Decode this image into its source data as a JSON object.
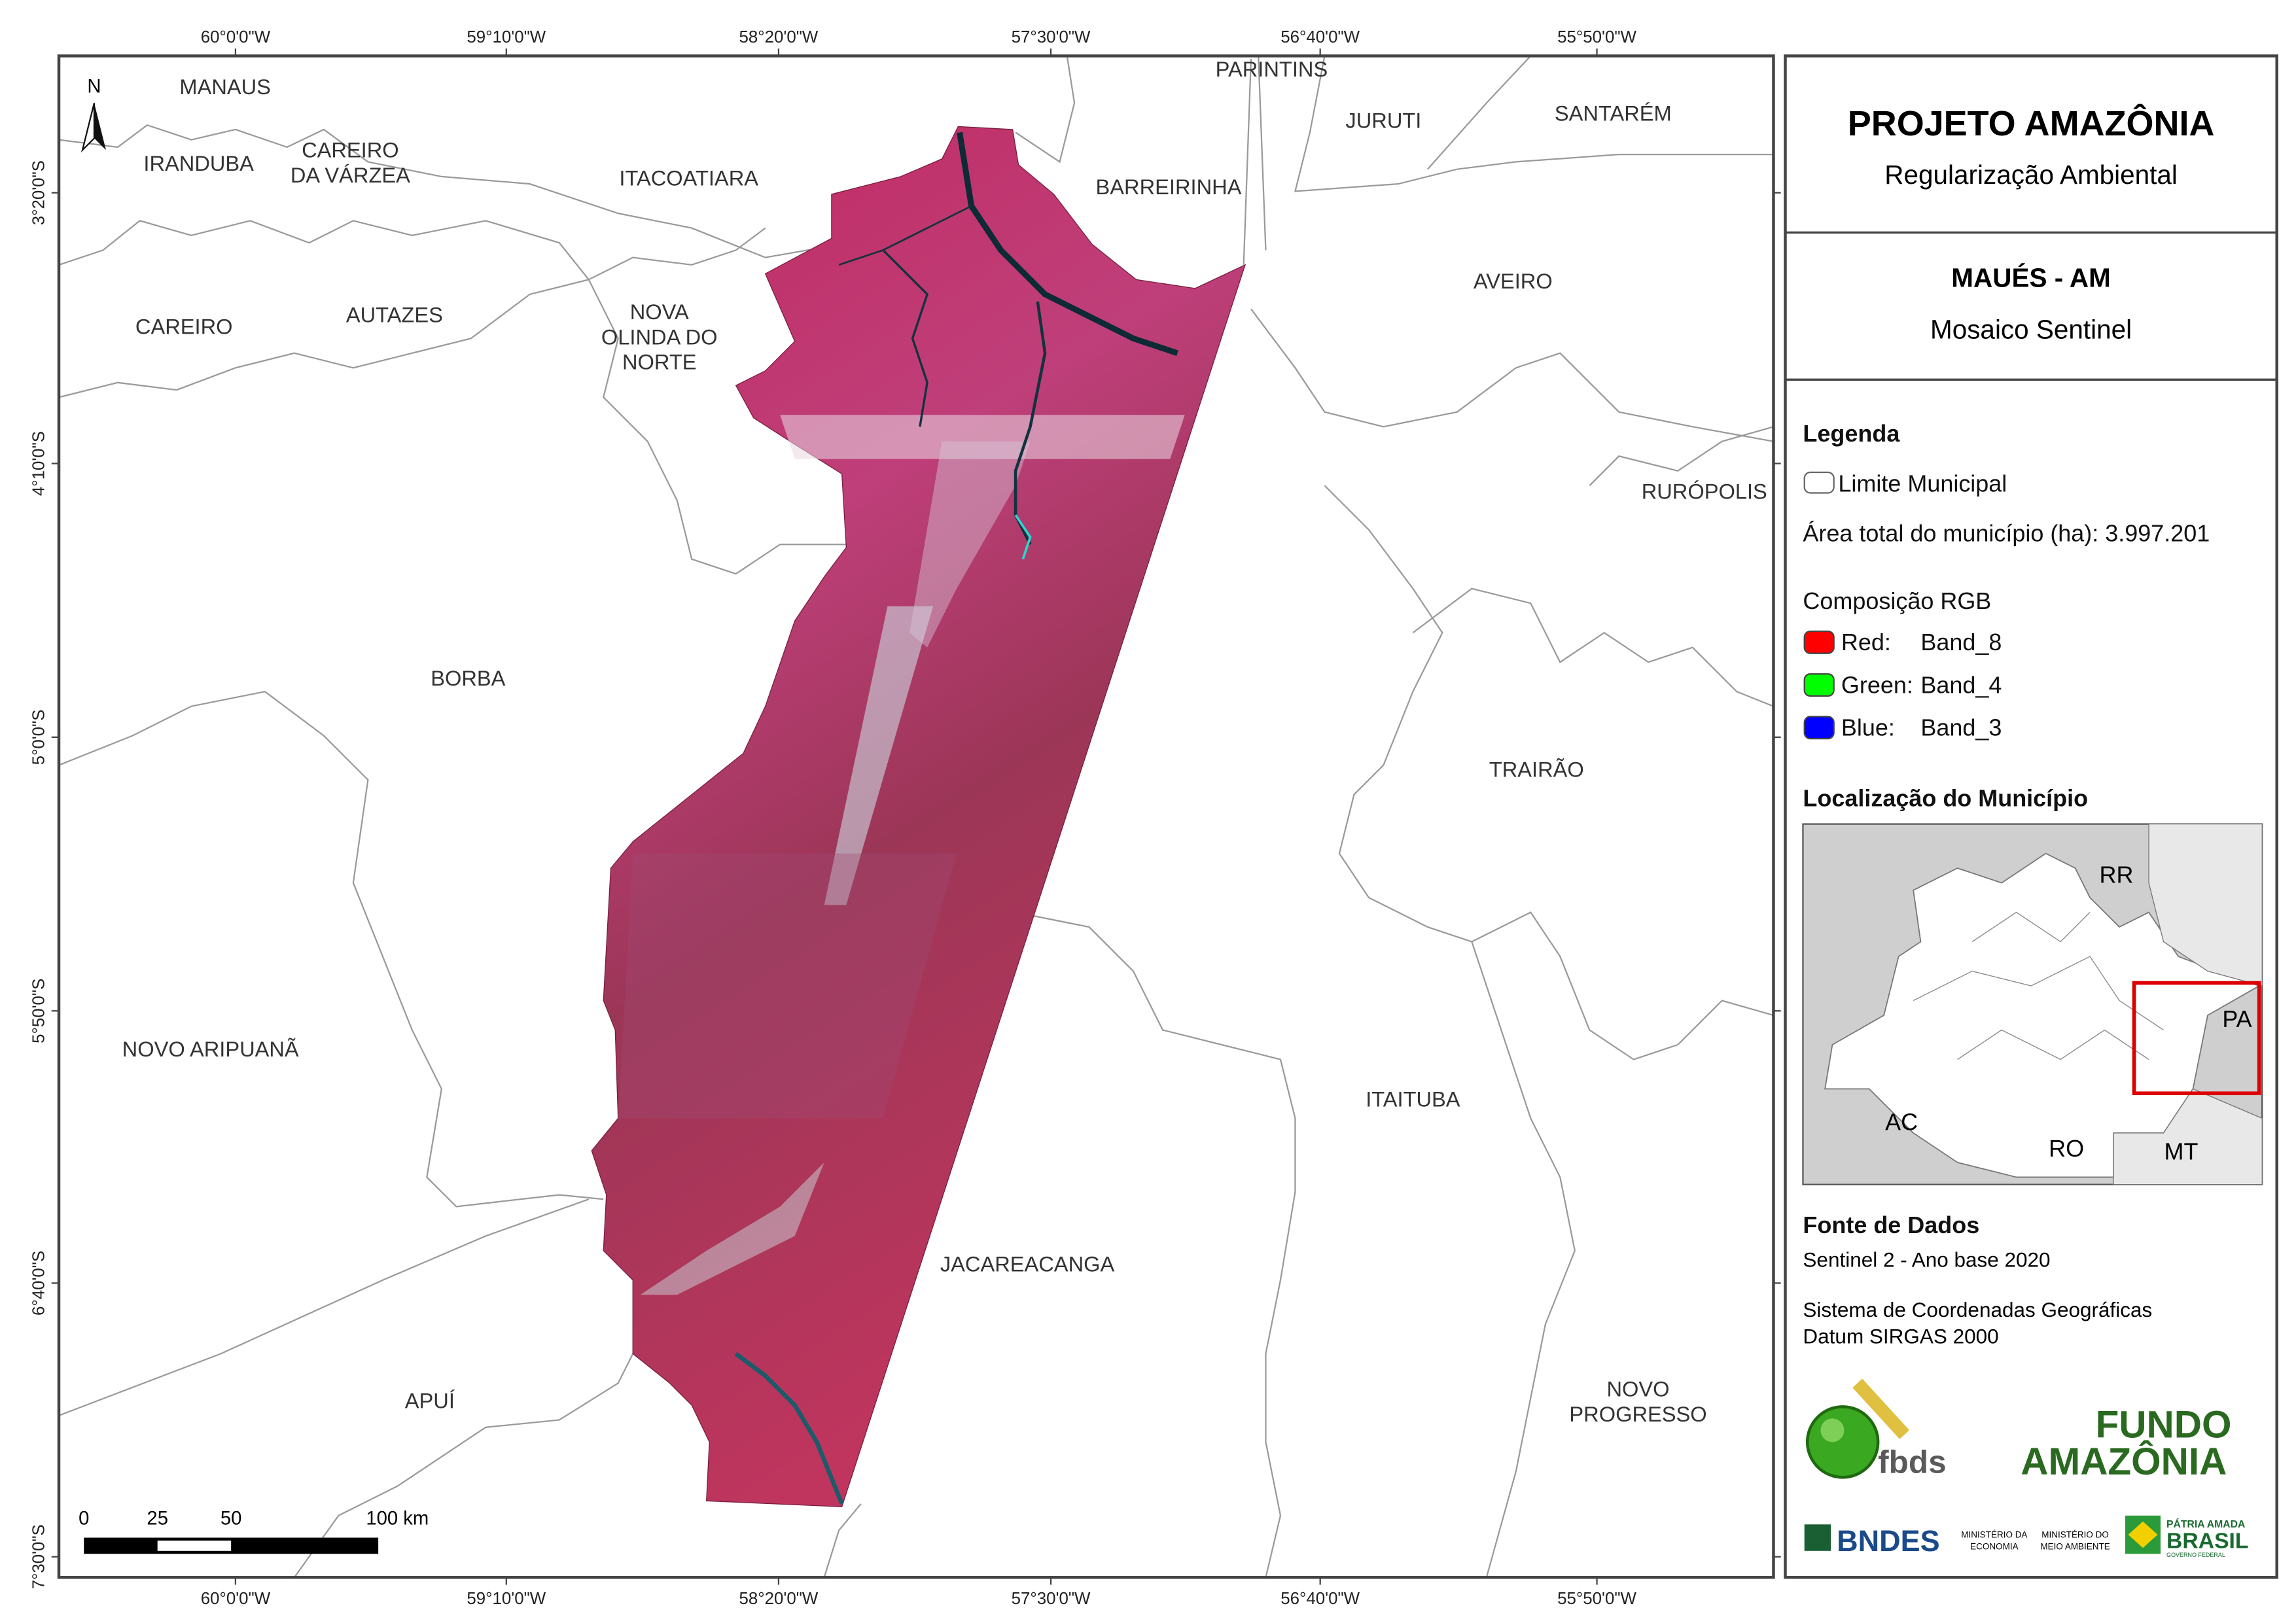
{
  "map": {
    "lon_ticks": [
      "60°0'0\"W",
      "59°10'0\"W",
      "58°20'0\"W",
      "57°30'0\"W",
      "56°40'0\"W",
      "55°50'0\"W"
    ],
    "lat_ticks": [
      "3°20'0\"S",
      "4°10'0\"S",
      "5°0'0\"S",
      "5°50'0\"S",
      "6°40'0\"S",
      "7°30'0\"S"
    ],
    "north": "N",
    "places": [
      [
        "MANAUS"
      ],
      [
        "IRANDUBA"
      ],
      [
        "CAREIRO",
        "DA VÁRZEA"
      ],
      [
        "ITACOATIARA"
      ],
      [
        "PARINTINS"
      ],
      [
        "JURUTI"
      ],
      [
        "SANTARÉM"
      ],
      [
        "BARREIRINHA"
      ],
      [
        "AVEIRO"
      ],
      [
        "CAREIRO"
      ],
      [
        "AUTAZES"
      ],
      [
        "NOVA",
        "OLINDA DO",
        "NORTE"
      ],
      [
        "RURÓPOLIS"
      ],
      [
        "BORBA"
      ],
      [
        "TRAIRÃO"
      ],
      [
        "NOVO ARIPUANÃ"
      ],
      [
        "ITAITUBA"
      ],
      [
        "JACAREACANGA"
      ],
      [
        "APUÍ"
      ],
      [
        "NOVO",
        "PROGRESSO"
      ]
    ],
    "scale_labels": [
      "0",
      "25",
      "50",
      "100 km"
    ]
  },
  "panel": {
    "title": "PROJETO AMAZÔNIA",
    "subtitle": "Regularização Ambiental",
    "municipality": "MAUÉS - AM",
    "product": "Mosaico Sentinel",
    "legend_title": "Legenda",
    "legend_boundary": "Limite Municipal",
    "area": "Área total do município (ha): 3.997.201",
    "rgb_title": "Composição RGB",
    "bands": [
      [
        "Red:",
        "Band_8"
      ],
      [
        "Green:",
        "Band_4"
      ],
      [
        "Blue:",
        "Band_3"
      ]
    ],
    "location_title": "Localização do Município",
    "location_labels": [
      "RR",
      "PA",
      "AC",
      "RO",
      "MT"
    ],
    "source_title": "Fonte de Dados",
    "source_lines": [
      "Sentinel 2 - Ano base 2020",
      "Sistema de Coordenadas Geográficas",
      "Datum SIRGAS 2000"
    ],
    "logos": {
      "fbds": "fbds",
      "fundo": "FUNDO",
      "amazonia": "AMAZÔNIA",
      "bndes": "BNDES",
      "min_economia": [
        "MINISTÉRIO DA",
        "ECONOMIA"
      ],
      "min_meio": [
        "MINISTÉRIO DO",
        "MEIO AMBIENTE"
      ],
      "patria": "PÁTRIA AMADA",
      "brasil": "BRASIL",
      "governo": "GOVERNO FEDERAL"
    }
  }
}
